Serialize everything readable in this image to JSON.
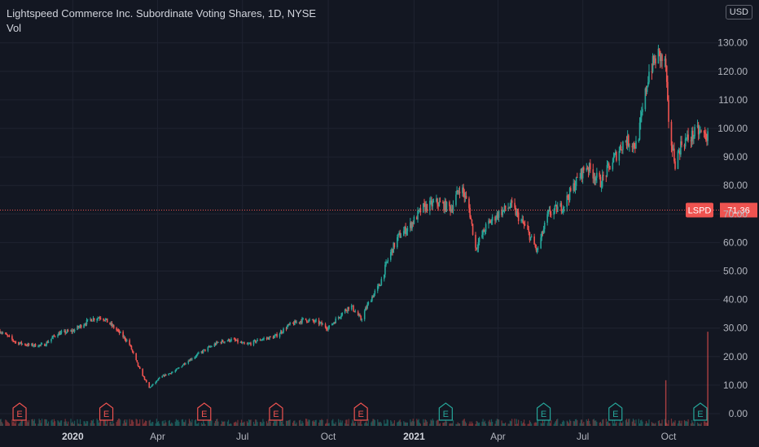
{
  "header": {
    "title": "Lightspeed Commerce Inc. Subordinate Voting Shares, 1D, NYSE",
    "volume_label": "Vol",
    "currency": "USD"
  },
  "colors": {
    "background": "#131722",
    "grid": "#1f2330",
    "text": "#b2b5be",
    "up": "#26a69a",
    "down": "#ef5350",
    "price_line": "#ef5350"
  },
  "chart_data": {
    "type": "candlestick",
    "symbol": "LSPD",
    "interval": "1D",
    "exchange": "NYSE",
    "last_price": 71.36,
    "last_price_label": "71.36",
    "ylim": [
      -2,
      135
    ],
    "y_ticks": [
      "0.00",
      "10.00",
      "20.00",
      "30.00",
      "40.00",
      "50.00",
      "60.00",
      "70.00",
      "80.00",
      "90.00",
      "100.00",
      "110.00",
      "120.00",
      "130.00"
    ],
    "x_axis": {
      "start": "2019-10-15",
      "end": "2021-11-25",
      "ticks": [
        {
          "date": "2020-01-01",
          "label": "2020",
          "bold": true
        },
        {
          "date": "2020-04-01",
          "label": "Apr",
          "bold": false
        },
        {
          "date": "2020-07-01",
          "label": "Jul",
          "bold": false
        },
        {
          "date": "2020-10-01",
          "label": "Oct",
          "bold": false
        },
        {
          "date": "2021-01-01",
          "label": "2021",
          "bold": true
        },
        {
          "date": "2021-04-01",
          "label": "Apr",
          "bold": false
        },
        {
          "date": "2021-07-01",
          "label": "Jul",
          "bold": false
        },
        {
          "date": "2021-10-01",
          "label": "Oct",
          "bold": false
        }
      ]
    },
    "price_series": [
      {
        "date": "2019-10-15",
        "close": 29
      },
      {
        "date": "2019-11-01",
        "close": 25
      },
      {
        "date": "2019-11-15",
        "close": 24
      },
      {
        "date": "2019-12-01",
        "close": 24
      },
      {
        "date": "2019-12-15",
        "close": 28
      },
      {
        "date": "2020-01-01",
        "close": 29
      },
      {
        "date": "2020-01-20",
        "close": 33
      },
      {
        "date": "2020-02-01",
        "close": 34
      },
      {
        "date": "2020-02-15",
        "close": 30
      },
      {
        "date": "2020-03-01",
        "close": 25
      },
      {
        "date": "2020-03-12",
        "close": 16
      },
      {
        "date": "2020-03-23",
        "close": 9
      },
      {
        "date": "2020-04-05",
        "close": 13
      },
      {
        "date": "2020-04-20",
        "close": 15
      },
      {
        "date": "2020-05-01",
        "close": 18
      },
      {
        "date": "2020-05-20",
        "close": 22
      },
      {
        "date": "2020-06-05",
        "close": 25
      },
      {
        "date": "2020-06-20",
        "close": 26
      },
      {
        "date": "2020-07-05",
        "close": 24
      },
      {
        "date": "2020-07-20",
        "close": 26
      },
      {
        "date": "2020-08-05",
        "close": 27
      },
      {
        "date": "2020-08-20",
        "close": 31
      },
      {
        "date": "2020-09-05",
        "close": 33
      },
      {
        "date": "2020-09-20",
        "close": 32
      },
      {
        "date": "2020-10-01",
        "close": 30
      },
      {
        "date": "2020-10-15",
        "close": 35
      },
      {
        "date": "2020-10-25",
        "close": 38
      },
      {
        "date": "2020-11-05",
        "close": 33
      },
      {
        "date": "2020-11-15",
        "close": 40
      },
      {
        "date": "2020-11-25",
        "close": 45
      },
      {
        "date": "2020-12-05",
        "close": 55
      },
      {
        "date": "2020-12-15",
        "close": 62
      },
      {
        "date": "2020-12-28",
        "close": 66
      },
      {
        "date": "2021-01-10",
        "close": 72
      },
      {
        "date": "2021-01-25",
        "close": 74
      },
      {
        "date": "2021-02-10",
        "close": 72
      },
      {
        "date": "2021-02-20",
        "close": 80
      },
      {
        "date": "2021-03-01",
        "close": 72
      },
      {
        "date": "2021-03-08",
        "close": 58
      },
      {
        "date": "2021-03-20",
        "close": 66
      },
      {
        "date": "2021-04-01",
        "close": 70
      },
      {
        "date": "2021-04-15",
        "close": 73
      },
      {
        "date": "2021-05-01",
        "close": 65
      },
      {
        "date": "2021-05-13",
        "close": 57
      },
      {
        "date": "2021-05-25",
        "close": 70
      },
      {
        "date": "2021-06-10",
        "close": 73
      },
      {
        "date": "2021-06-25",
        "close": 82
      },
      {
        "date": "2021-07-05",
        "close": 87
      },
      {
        "date": "2021-07-20",
        "close": 81
      },
      {
        "date": "2021-08-01",
        "close": 88
      },
      {
        "date": "2021-08-15",
        "close": 96
      },
      {
        "date": "2021-08-28",
        "close": 94
      },
      {
        "date": "2021-09-10",
        "close": 120
      },
      {
        "date": "2021-09-20",
        "close": 126
      },
      {
        "date": "2021-09-28",
        "close": 122
      },
      {
        "date": "2021-10-01",
        "close": 100
      },
      {
        "date": "2021-10-08",
        "close": 88
      },
      {
        "date": "2021-10-15",
        "close": 95
      },
      {
        "date": "2021-10-25",
        "close": 97
      },
      {
        "date": "2021-11-01",
        "close": 99
      },
      {
        "date": "2021-11-12",
        "close": 97
      }
    ],
    "volume_spikes": [
      {
        "date": "2021-09-28",
        "value": 16
      },
      {
        "date": "2021-11-12",
        "value": 33
      }
    ],
    "earnings_markers": [
      {
        "date": "2019-11-05",
        "label": "E",
        "type": "past"
      },
      {
        "date": "2020-02-06",
        "label": "E",
        "type": "past"
      },
      {
        "date": "2020-05-21",
        "label": "E",
        "type": "past"
      },
      {
        "date": "2020-08-06",
        "label": "E",
        "type": "past"
      },
      {
        "date": "2020-11-05",
        "label": "E",
        "type": "past"
      },
      {
        "date": "2021-02-04",
        "label": "E",
        "type": "upcoming"
      },
      {
        "date": "2021-05-20",
        "label": "E",
        "type": "upcoming"
      },
      {
        "date": "2021-08-05",
        "label": "E",
        "type": "upcoming"
      },
      {
        "date": "2021-11-04",
        "label": "E",
        "type": "upcoming"
      }
    ]
  }
}
